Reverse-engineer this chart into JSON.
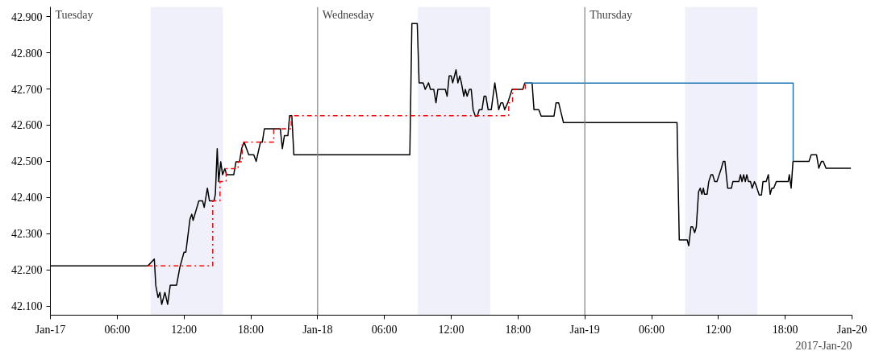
{
  "chart_data": {
    "type": "line",
    "series": [
      {
        "color": "#000000",
        "line_style": "solid",
        "x": [
          "2017-01-17T00:00",
          "2017-01-17T08:45",
          "2017-01-17T09:20",
          "2017-01-17T09:28",
          "2017-01-17T09:40",
          "2017-01-17T09:50",
          "2017-01-17T10:00",
          "2017-01-17T10:17",
          "2017-01-17T10:32",
          "2017-01-17T10:46",
          "2017-01-17T11:20",
          "2017-01-17T11:38",
          "2017-01-17T12:00",
          "2017-01-17T12:10",
          "2017-01-17T12:32",
          "2017-01-17T12:42",
          "2017-01-17T12:49",
          "2017-01-17T13:20",
          "2017-01-17T13:40",
          "2017-01-17T13:49",
          "2017-01-17T14:06",
          "2017-01-17T14:17",
          "2017-01-17T14:42",
          "2017-01-17T14:49",
          "2017-01-17T14:59",
          "2017-01-17T15:07",
          "2017-01-17T15:18",
          "2017-01-17T15:28",
          "2017-01-17T15:40",
          "2017-01-17T15:50",
          "2017-01-17T16:28",
          "2017-01-17T16:40",
          "2017-01-17T16:59",
          "2017-01-17T17:11",
          "2017-01-17T17:24",
          "2017-01-17T17:49",
          "2017-01-17T18:16",
          "2017-01-17T18:29",
          "2017-01-17T18:52",
          "2017-01-17T19:02",
          "2017-01-17T19:13",
          "2017-01-17T20:39",
          "2017-01-17T20:50",
          "2017-01-17T21:01",
          "2017-01-17T21:20",
          "2017-01-17T21:29",
          "2017-01-17T21:41",
          "2017-01-17T21:52",
          "2017-01-18T08:17",
          "2017-01-18T08:28",
          "2017-01-18T08:57",
          "2017-01-18T09:07",
          "2017-01-18T09:29",
          "2017-01-18T09:40",
          "2017-01-18T09:58",
          "2017-01-18T10:08",
          "2017-01-18T10:26",
          "2017-01-18T10:38",
          "2017-01-18T10:48",
          "2017-01-18T11:28",
          "2017-01-18T11:38",
          "2017-01-18T11:49",
          "2017-01-18T12:00",
          "2017-01-18T12:08",
          "2017-01-18T12:26",
          "2017-01-18T12:36",
          "2017-01-18T12:46",
          "2017-01-18T12:55",
          "2017-01-18T13:08",
          "2017-01-18T13:16",
          "2017-01-18T13:26",
          "2017-01-18T13:38",
          "2017-01-18T13:48",
          "2017-01-18T13:58",
          "2017-01-18T14:10",
          "2017-01-18T14:21",
          "2017-01-18T14:31",
          "2017-01-18T14:46",
          "2017-01-18T14:57",
          "2017-01-18T15:07",
          "2017-01-18T15:19",
          "2017-01-18T15:36",
          "2017-01-18T15:55",
          "2017-01-18T16:16",
          "2017-01-18T16:28",
          "2017-01-18T16:38",
          "2017-01-18T16:48",
          "2017-01-18T17:05",
          "2017-01-18T17:28",
          "2017-01-18T18:26",
          "2017-01-18T18:36",
          "2017-01-18T19:16",
          "2017-01-18T19:26",
          "2017-01-18T19:52",
          "2017-01-18T20:05",
          "2017-01-18T21:14",
          "2017-01-18T21:25",
          "2017-01-18T21:39",
          "2017-01-18T22:05",
          "2017-01-19T08:17",
          "2017-01-19T08:29",
          "2017-01-19T09:12",
          "2017-01-19T09:20",
          "2017-01-19T09:32",
          "2017-01-19T09:41",
          "2017-01-19T09:52",
          "2017-01-19T10:01",
          "2017-01-19T10:13",
          "2017-01-19T10:22",
          "2017-01-19T10:31",
          "2017-01-19T10:39",
          "2017-01-19T10:45",
          "2017-01-19T10:59",
          "2017-01-19T11:08",
          "2017-01-19T11:20",
          "2017-01-19T11:29",
          "2017-01-19T11:40",
          "2017-01-19T11:52",
          "2017-01-19T12:16",
          "2017-01-19T12:26",
          "2017-01-19T12:35",
          "2017-01-19T12:50",
          "2017-01-19T13:10",
          "2017-01-19T13:18",
          "2017-01-19T13:50",
          "2017-01-19T13:59",
          "2017-01-19T14:07",
          "2017-01-19T14:16",
          "2017-01-19T14:25",
          "2017-01-19T14:33",
          "2017-01-19T14:42",
          "2017-01-19T14:53",
          "2017-01-19T15:02",
          "2017-01-19T15:14",
          "2017-01-19T15:22",
          "2017-01-19T15:40",
          "2017-01-19T15:52",
          "2017-01-19T16:00",
          "2017-01-19T16:17",
          "2017-01-19T16:29",
          "2017-01-19T16:39",
          "2017-01-19T16:48",
          "2017-01-19T16:58",
          "2017-01-19T17:12",
          "2017-01-19T18:16",
          "2017-01-19T18:22",
          "2017-01-19T18:32",
          "2017-01-19T18:42",
          "2017-01-19T20:08",
          "2017-01-19T20:20",
          "2017-01-19T20:49",
          "2017-01-19T21:01",
          "2017-01-19T21:15",
          "2017-01-19T21:25",
          "2017-01-19T21:40",
          "2017-01-19T23:54"
        ],
        "values": [
          42.211,
          42.211,
          42.23,
          42.157,
          42.124,
          42.138,
          42.105,
          42.138,
          42.105,
          42.158,
          42.158,
          42.208,
          42.249,
          42.249,
          42.34,
          42.354,
          42.337,
          42.391,
          42.391,
          42.373,
          42.426,
          42.391,
          42.391,
          42.409,
          42.535,
          42.444,
          42.499,
          42.463,
          42.48,
          42.463,
          42.463,
          42.499,
          42.499,
          42.536,
          42.553,
          42.518,
          42.518,
          42.5,
          42.553,
          42.553,
          42.59,
          42.59,
          42.535,
          42.571,
          42.571,
          42.626,
          42.626,
          42.518,
          42.518,
          42.881,
          42.881,
          42.717,
          42.717,
          42.699,
          42.717,
          42.699,
          42.699,
          42.662,
          42.699,
          42.699,
          42.68,
          42.736,
          42.736,
          42.717,
          42.753,
          42.717,
          42.736,
          42.717,
          42.68,
          42.699,
          42.68,
          42.699,
          42.699,
          42.643,
          42.625,
          42.625,
          42.643,
          42.643,
          42.68,
          42.68,
          42.643,
          42.643,
          42.717,
          42.643,
          42.662,
          42.662,
          42.643,
          42.662,
          42.699,
          42.699,
          42.716,
          42.716,
          42.643,
          42.643,
          42.625,
          42.625,
          42.662,
          42.662,
          42.607,
          42.607,
          42.283,
          42.283,
          42.267,
          42.319,
          42.319,
          42.303,
          42.319,
          42.416,
          42.426,
          42.409,
          42.426,
          42.409,
          42.409,
          42.444,
          42.463,
          42.463,
          42.444,
          42.444,
          42.481,
          42.5,
          42.5,
          42.426,
          42.426,
          42.444,
          42.444,
          42.463,
          42.444,
          42.463,
          42.444,
          42.463,
          42.444,
          42.444,
          42.426,
          42.444,
          42.435,
          42.407,
          42.407,
          42.444,
          42.444,
          42.463,
          42.409,
          42.426,
          42.426,
          42.444,
          42.444,
          42.463,
          42.426,
          42.5,
          42.5,
          42.518,
          42.518,
          42.481,
          42.5,
          42.5,
          42.481,
          42.481
        ]
      },
      {
        "type": "step",
        "color": "#ff0000",
        "line_style": "dashdot",
        "x": [
          "2017-01-17T08:45",
          "2017-01-17T14:35",
          "2017-01-17T15:14",
          "2017-01-17T15:47",
          "2017-01-17T16:52",
          "2017-01-17T17:14",
          "2017-01-17T20:04",
          "2017-01-17T21:38",
          "2017-01-18T17:10",
          "2017-01-18T17:31",
          "2017-01-18T18:40",
          "2017-01-18T18:45"
        ],
        "values": [
          42.211,
          42.391,
          42.444,
          42.48,
          42.499,
          42.553,
          42.59,
          42.626,
          42.662,
          42.699,
          42.716,
          42.716
        ]
      },
      {
        "color": "#1f77b4",
        "line_style": "solid",
        "x": [
          "2017-01-18T18:36",
          "2017-01-19T18:43",
          "2017-01-19T18:43"
        ],
        "values": [
          42.716,
          42.716,
          42.5
        ]
      }
    ],
    "xlim": [
      "2017-01-17T00:00",
      "2017-01-20T00:00"
    ],
    "ylim": [
      42.075,
      42.927
    ],
    "xticks": [
      {
        "value": "2017-01-17T00:00",
        "label": "Jan-17"
      },
      {
        "value": "2017-01-17T06:00",
        "label": "06:00"
      },
      {
        "value": "2017-01-17T12:00",
        "label": "12:00"
      },
      {
        "value": "2017-01-17T18:00",
        "label": "18:00"
      },
      {
        "value": "2017-01-18T00:00",
        "label": "Jan-18"
      },
      {
        "value": "2017-01-18T06:00",
        "label": "06:00"
      },
      {
        "value": "2017-01-18T12:00",
        "label": "12:00"
      },
      {
        "value": "2017-01-18T18:00",
        "label": "18:00"
      },
      {
        "value": "2017-01-19T00:00",
        "label": "Jan-19"
      },
      {
        "value": "2017-01-19T06:00",
        "label": "06:00"
      },
      {
        "value": "2017-01-19T12:00",
        "label": "12:00"
      },
      {
        "value": "2017-01-19T18:00",
        "label": "18:00"
      },
      {
        "value": "2017-01-20T00:00",
        "label": "Jan-20"
      }
    ],
    "yticks": [
      {
        "value": 42.1,
        "label": "42.100"
      },
      {
        "value": 42.2,
        "label": "42.200"
      },
      {
        "value": 42.3,
        "label": "42.300"
      },
      {
        "value": 42.4,
        "label": "42.400"
      },
      {
        "value": 42.5,
        "label": "42.500"
      },
      {
        "value": 42.6,
        "label": "42.600"
      },
      {
        "value": 42.7,
        "label": "42.700"
      },
      {
        "value": 42.8,
        "label": "42.800"
      },
      {
        "value": 42.9,
        "label": "42.900"
      }
    ],
    "bands": [
      {
        "axis": "x",
        "from": "2017-01-17T09:00",
        "to": "2017-01-17T15:30",
        "color": "#f0f0fa"
      },
      {
        "axis": "x",
        "from": "2017-01-18T09:00",
        "to": "2017-01-18T15:30",
        "color": "#f0f0fa"
      },
      {
        "axis": "x",
        "from": "2017-01-19T09:00",
        "to": "2017-01-19T15:30",
        "color": "#f0f0fa"
      }
    ],
    "ref_lines": [
      {
        "axis": "x",
        "value": "2017-01-18T00:00",
        "label": "Wednesday",
        "color": "#808080"
      },
      {
        "axis": "x",
        "value": "2017-01-19T00:00",
        "label": "Thursday",
        "color": "#808080"
      }
    ],
    "annotations": [
      "Tuesday",
      "2017-Jan-20"
    ],
    "grid": false,
    "marker": "none"
  }
}
